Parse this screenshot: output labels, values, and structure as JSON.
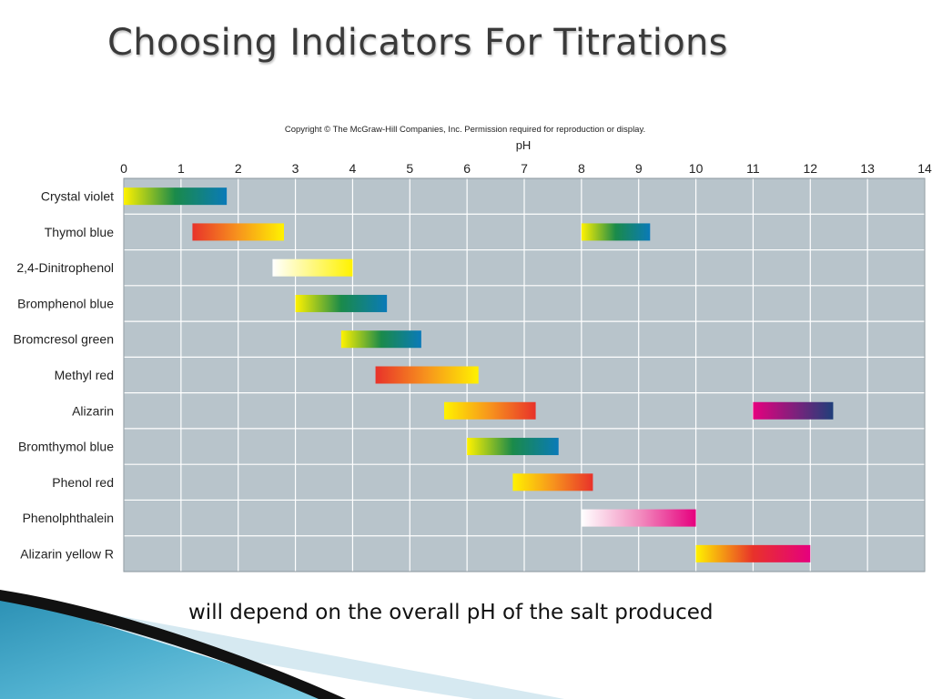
{
  "slide": {
    "title": "Choosing Indicators For Titrations",
    "subtitle": "will depend on the overall pH of the salt produced"
  },
  "chart_data": {
    "type": "bar",
    "orientation": "horizontal-range",
    "copyright": "Copyright © The McGraw-Hill Companies, Inc. Permission required for reproduction or display.",
    "xlabel": "pH",
    "xlim": [
      0,
      14
    ],
    "x_ticks": [
      "0",
      "1",
      "2",
      "3",
      "4",
      "5",
      "6",
      "7",
      "8",
      "9",
      "10",
      "11",
      "12",
      "13",
      "14"
    ],
    "x_axis_position": "top",
    "grid": true,
    "background_color": "#b8c4cb",
    "categories": [
      "Crystal violet",
      "Thymol blue",
      "2,4-Dinitrophenol",
      "Bromphenol blue",
      "Bromcresol green",
      "Methyl red",
      "Alizarin",
      "Bromthymol blue",
      "Phenol red",
      "Phenolphthalein",
      "Alizarin yellow R"
    ],
    "ranges": [
      [
        {
          "start": 0.0,
          "end": 1.8,
          "colors": [
            "#fff200",
            "#1a8a4a",
            "#0a7ab8"
          ]
        }
      ],
      [
        {
          "start": 1.2,
          "end": 2.8,
          "colors": [
            "#e8322a",
            "#f7941d",
            "#fff200"
          ]
        },
        {
          "start": 8.0,
          "end": 9.2,
          "colors": [
            "#fff200",
            "#1a8a4a",
            "#0a7ab8"
          ]
        }
      ],
      [
        {
          "start": 2.6,
          "end": 4.0,
          "colors": [
            "#ffffff",
            "#fff200"
          ]
        }
      ],
      [
        {
          "start": 3.0,
          "end": 4.6,
          "colors": [
            "#fff200",
            "#1a8a4a",
            "#0a7ab8"
          ]
        }
      ],
      [
        {
          "start": 3.8,
          "end": 5.2,
          "colors": [
            "#fff200",
            "#1a8a4a",
            "#0a7ab8"
          ]
        }
      ],
      [
        {
          "start": 4.4,
          "end": 6.2,
          "colors": [
            "#e8322a",
            "#f7941d",
            "#fff200"
          ]
        }
      ],
      [
        {
          "start": 5.6,
          "end": 7.2,
          "colors": [
            "#fff200",
            "#f7941d",
            "#e8322a"
          ]
        },
        {
          "start": 11.0,
          "end": 12.4,
          "colors": [
            "#e6007e",
            "#1f3f7a"
          ]
        }
      ],
      [
        {
          "start": 6.0,
          "end": 7.6,
          "colors": [
            "#fff200",
            "#1a8a4a",
            "#0a7ab8"
          ]
        }
      ],
      [
        {
          "start": 6.8,
          "end": 8.2,
          "colors": [
            "#fff200",
            "#f7941d",
            "#e8322a"
          ]
        }
      ],
      [
        {
          "start": 8.0,
          "end": 10.0,
          "colors": [
            "#ffffff",
            "#f28fc0",
            "#e6007e"
          ]
        }
      ],
      [
        {
          "start": 10.0,
          "end": 12.0,
          "colors": [
            "#fff200",
            "#e8322a",
            "#e6007e"
          ]
        }
      ]
    ]
  }
}
